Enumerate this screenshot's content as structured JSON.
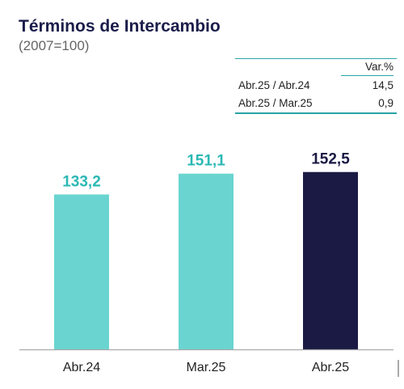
{
  "title": "Términos de Intercambio",
  "subtitle": "(2007=100)",
  "var_table": {
    "header": "Var.%",
    "rows": [
      {
        "label": "Abr.25 / Abr.24",
        "value": "14,5"
      },
      {
        "label": "Abr.25 / Mar.25",
        "value": "0,9"
      }
    ]
  },
  "chart_data": {
    "type": "bar",
    "categories": [
      "Abr.24",
      "Mar.25",
      "Abr.25"
    ],
    "values": [
      133.2,
      151.1,
      152.5
    ],
    "value_labels": [
      "133,2",
      "151,1",
      "152,5"
    ],
    "title": "Términos de Intercambio",
    "subtitle": "(2007=100)",
    "colors": [
      "#6ad5d0",
      "#6ad5d0",
      "#1a1a44"
    ],
    "label_colors": [
      "#2ab8b4",
      "#2ab8b4",
      "#1a1a44"
    ],
    "grid": false,
    "legend": "none"
  }
}
